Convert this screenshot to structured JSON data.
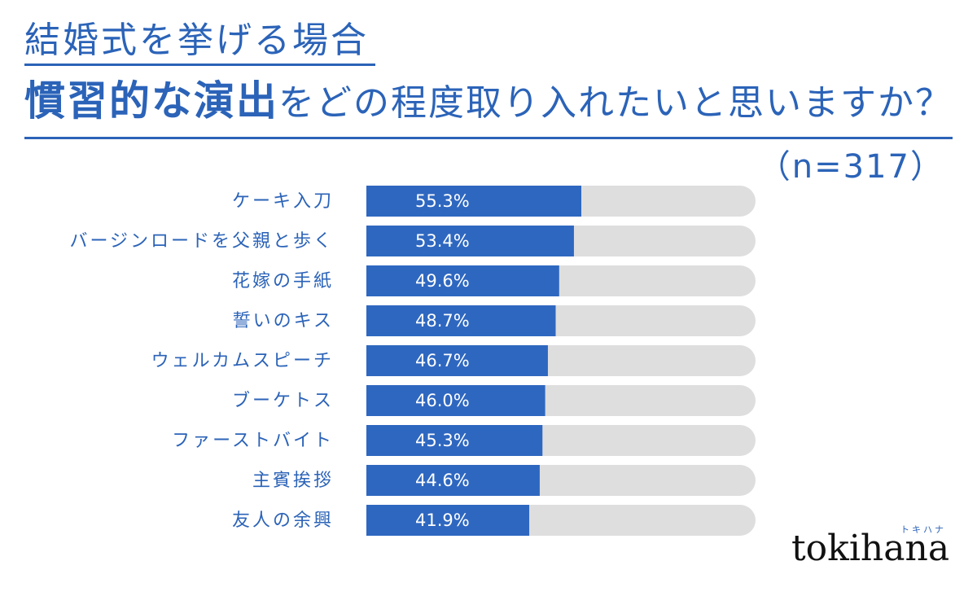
{
  "title": {
    "line1": "結婚式を挙げる場合",
    "line2_emphasis": "慣習的な演出",
    "line2_rest": "をどの程度取り入れたいと思いますか？"
  },
  "sample_size": "（n=317）",
  "logo": {
    "text": "tokihana",
    "kana": "トキハナ"
  },
  "colors": {
    "accent": "#2b63b8",
    "bar": "#2e67c0",
    "track": "#dedede"
  },
  "chart_data": {
    "type": "bar",
    "orientation": "horizontal",
    "categories": [
      "ケーキ入刀",
      "バージンロードを父親と歩く",
      "花嫁の手紙",
      "誓いのキス",
      "ウェルカムスピーチ",
      "ブーケトス",
      "ファーストバイト",
      "主賓挨拶",
      "友人の余興"
    ],
    "values": [
      55.3,
      53.4,
      49.6,
      48.7,
      46.7,
      46.0,
      45.3,
      44.6,
      41.9
    ],
    "value_labels": [
      "55.3%",
      "53.4%",
      "49.6%",
      "48.7%",
      "46.7%",
      "46.0%",
      "45.3%",
      "44.6%",
      "41.9%"
    ],
    "xlim": [
      0,
      100
    ],
    "unit": "%",
    "grid": false,
    "legend": "none"
  }
}
